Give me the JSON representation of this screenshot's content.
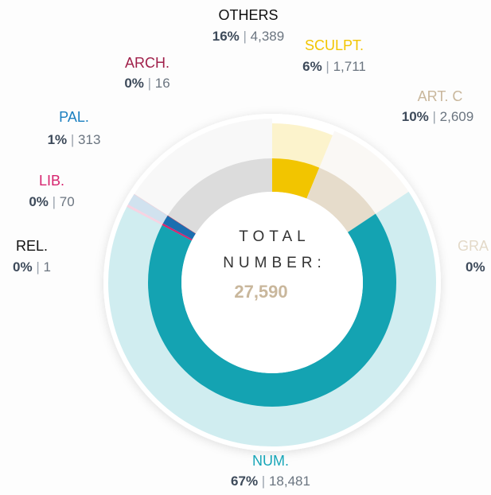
{
  "chart_data": {
    "type": "donut",
    "center_title": [
      "TOTAL",
      "NUMBER:"
    ],
    "total": 27590,
    "total_label": "27,590",
    "categories": [
      "SCULPT.",
      "ART. C",
      "GRA",
      "NUM.",
      "REL.",
      "LIB.",
      "PAL.",
      "ARCH.",
      "OTHERS"
    ],
    "values": [
      1711,
      2609,
      null,
      18481,
      1,
      70,
      313,
      16,
      4389
    ],
    "value_labels": [
      "1,711",
      "2,609",
      null,
      "18,481",
      "1",
      "70",
      "313",
      "16",
      "4,389"
    ],
    "percents": [
      6,
      10,
      0,
      67,
      0,
      0,
      1,
      0,
      16
    ],
    "percent_labels": [
      "6%",
      "10%",
      "0%",
      "67%",
      "0%",
      "0%",
      "1%",
      "0%",
      "16%"
    ],
    "colors": [
      "#f2c500",
      "#e6dccb",
      "#d8ccb6",
      "#14a3b2",
      "#222222",
      "#d6246e",
      "#1b6fb0",
      "#a3204c",
      "#dcdcdc"
    ],
    "label_colors": [
      "#f2c500",
      "#c9b79c",
      "#e3d9c8",
      "#17a6b8",
      "#111111",
      "#d6246e",
      "#1a7fc0",
      "#a0204a",
      "#111111"
    ]
  }
}
